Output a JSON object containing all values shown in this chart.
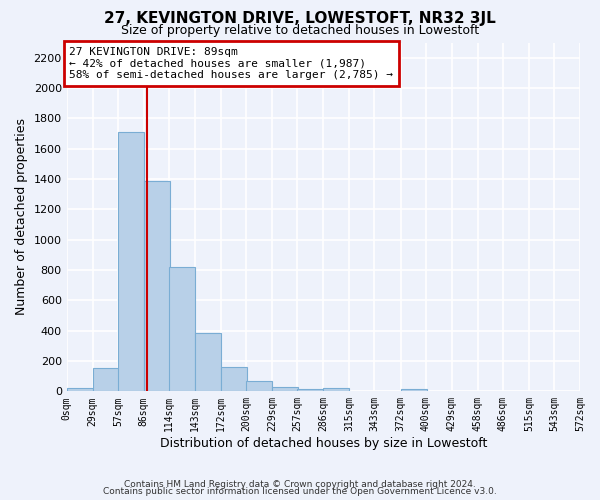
{
  "title": "27, KEVINGTON DRIVE, LOWESTOFT, NR32 3JL",
  "subtitle": "Size of property relative to detached houses in Lowestoft",
  "xlabel": "Distribution of detached houses by size in Lowestoft",
  "ylabel": "Number of detached properties",
  "bar_color": "#b8d0e8",
  "bar_edge_color": "#7aadd4",
  "categories": [
    "0sqm",
    "29sqm",
    "57sqm",
    "86sqm",
    "114sqm",
    "143sqm",
    "172sqm",
    "200sqm",
    "229sqm",
    "257sqm",
    "286sqm",
    "315sqm",
    "343sqm",
    "372sqm",
    "400sqm",
    "429sqm",
    "458sqm",
    "486sqm",
    "515sqm",
    "543sqm",
    "572sqm"
  ],
  "bin_edges": [
    0,
    29,
    57,
    86,
    114,
    143,
    172,
    200,
    229,
    257,
    286,
    315,
    343,
    372,
    400,
    429,
    458,
    486,
    515,
    543,
    572
  ],
  "bin_width": 29,
  "values": [
    20,
    155,
    1710,
    1390,
    820,
    385,
    160,
    65,
    30,
    15,
    25,
    0,
    0,
    15,
    0,
    0,
    0,
    0,
    0,
    0,
    0
  ],
  "ylim": [
    0,
    2300
  ],
  "yticks": [
    0,
    200,
    400,
    600,
    800,
    1000,
    1200,
    1400,
    1600,
    1800,
    2000,
    2200
  ],
  "property_line_x": 89,
  "annotation_title": "27 KEVINGTON DRIVE: 89sqm",
  "annotation_line1": "← 42% of detached houses are smaller (1,987)",
  "annotation_line2": "58% of semi-detached houses are larger (2,785) →",
  "annotation_box_color": "#ffffff",
  "annotation_box_edge": "#cc0000",
  "property_line_color": "#cc0000",
  "background_color": "#eef2fb",
  "grid_color": "#ffffff",
  "footer1": "Contains HM Land Registry data © Crown copyright and database right 2024.",
  "footer2": "Contains public sector information licensed under the Open Government Licence v3.0."
}
